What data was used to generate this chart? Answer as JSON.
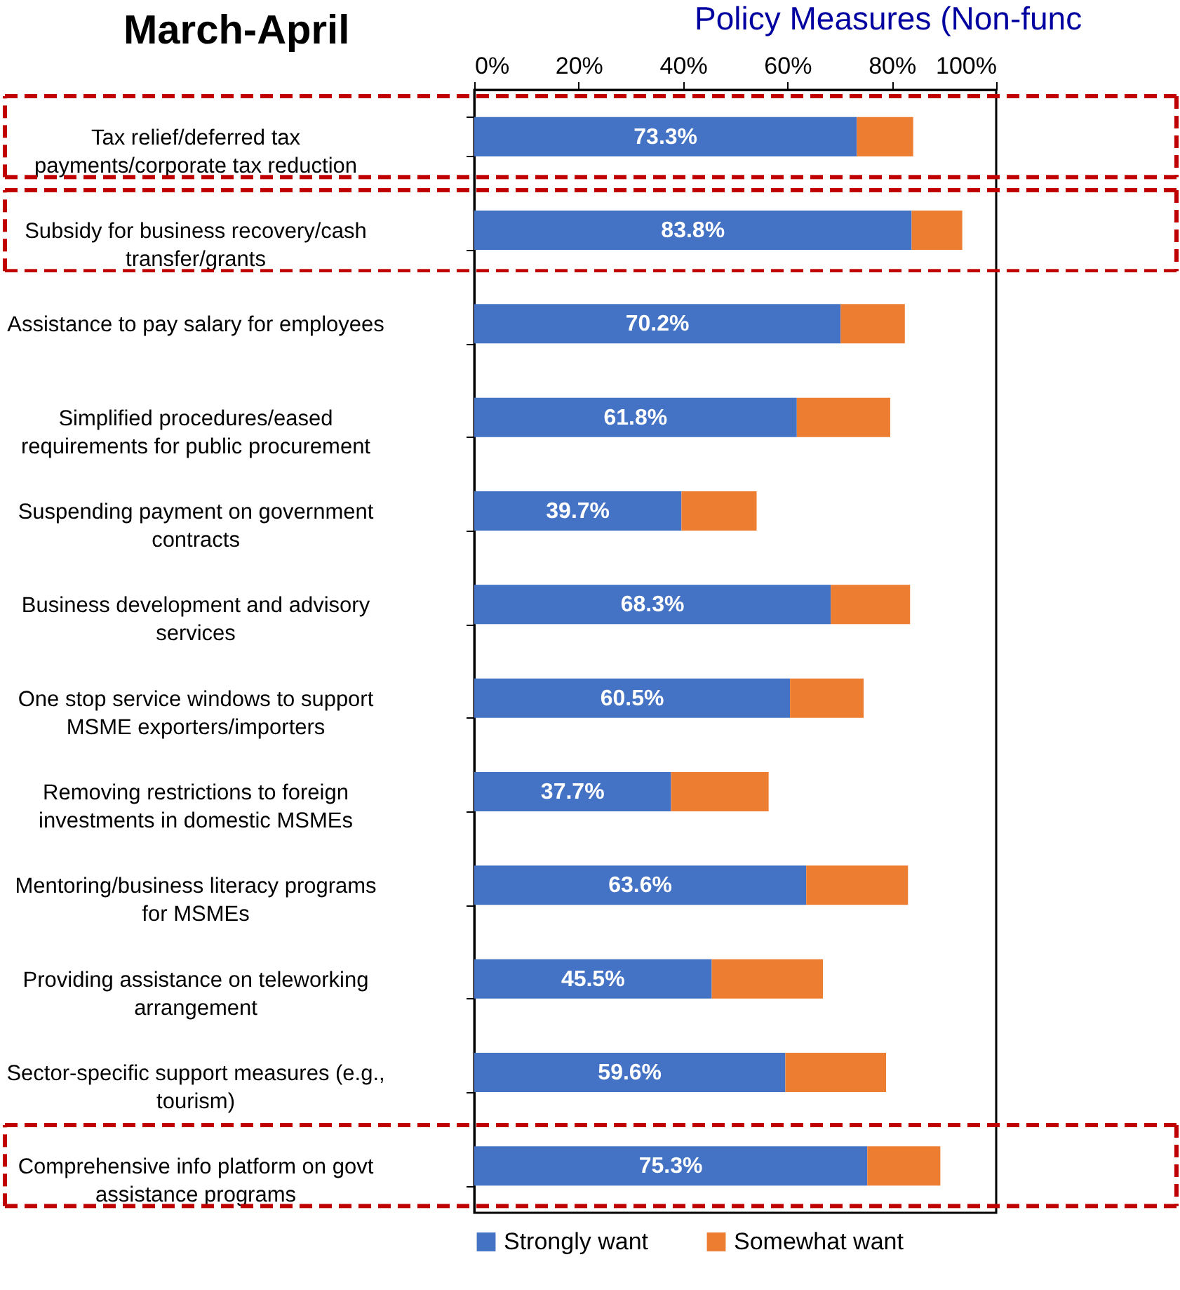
{
  "chart_data": {
    "type": "bar",
    "orientation": "horizontal",
    "stacked": true,
    "title": "March-April",
    "subtitle": "Policy Measures (Non-func",
    "categories": [
      "Tax relief/deferred tax payments/corporate tax reduction",
      "Subsidy for business recovery/cash transfer/grants",
      "Assistance to pay salary for employees",
      "Simplified procedures/eased requirements for public procurement",
      "Suspending payment on government contracts",
      "Business development and advisory services",
      "One stop service windows to support MSME exporters/importers",
      "Removing restrictions to foreign investments in domestic MSMEs",
      "Mentoring/business literacy programs for MSMEs",
      "Providing assistance on teleworking arrangement",
      "Sector-specific support measures (e.g., tourism)",
      "Comprehensive info platform on govt assistance programs"
    ],
    "series": [
      {
        "name": "Strongly want",
        "color": "#4472c4",
        "values": [
          73.3,
          83.8,
          70.2,
          61.8,
          39.7,
          68.3,
          60.5,
          37.7,
          63.6,
          45.5,
          59.6,
          75.3
        ],
        "value_labels": [
          "73.3%",
          "83.8%",
          "70.2%",
          "61.8%",
          "39.7%",
          "68.3%",
          "60.5%",
          "37.7%",
          "63.6%",
          "45.5%",
          "59.6%",
          "75.3%"
        ]
      },
      {
        "name": "Somewhat want",
        "color": "#ed7d31",
        "values": [
          10.8,
          9.7,
          12.3,
          17.9,
          14.4,
          15.2,
          14.1,
          18.7,
          19.5,
          21.3,
          19.3,
          14.0
        ]
      }
    ],
    "xlim": [
      0,
      100
    ],
    "xticks": [
      {
        "value": 0,
        "label": "0%"
      },
      {
        "value": 20,
        "label": "20%"
      },
      {
        "value": 40,
        "label": "40%"
      },
      {
        "value": 60,
        "label": "60%"
      },
      {
        "value": 80,
        "label": "80%"
      },
      {
        "value": 100,
        "label": "100%"
      }
    ],
    "grid": false,
    "legend": "bottom"
  }
}
